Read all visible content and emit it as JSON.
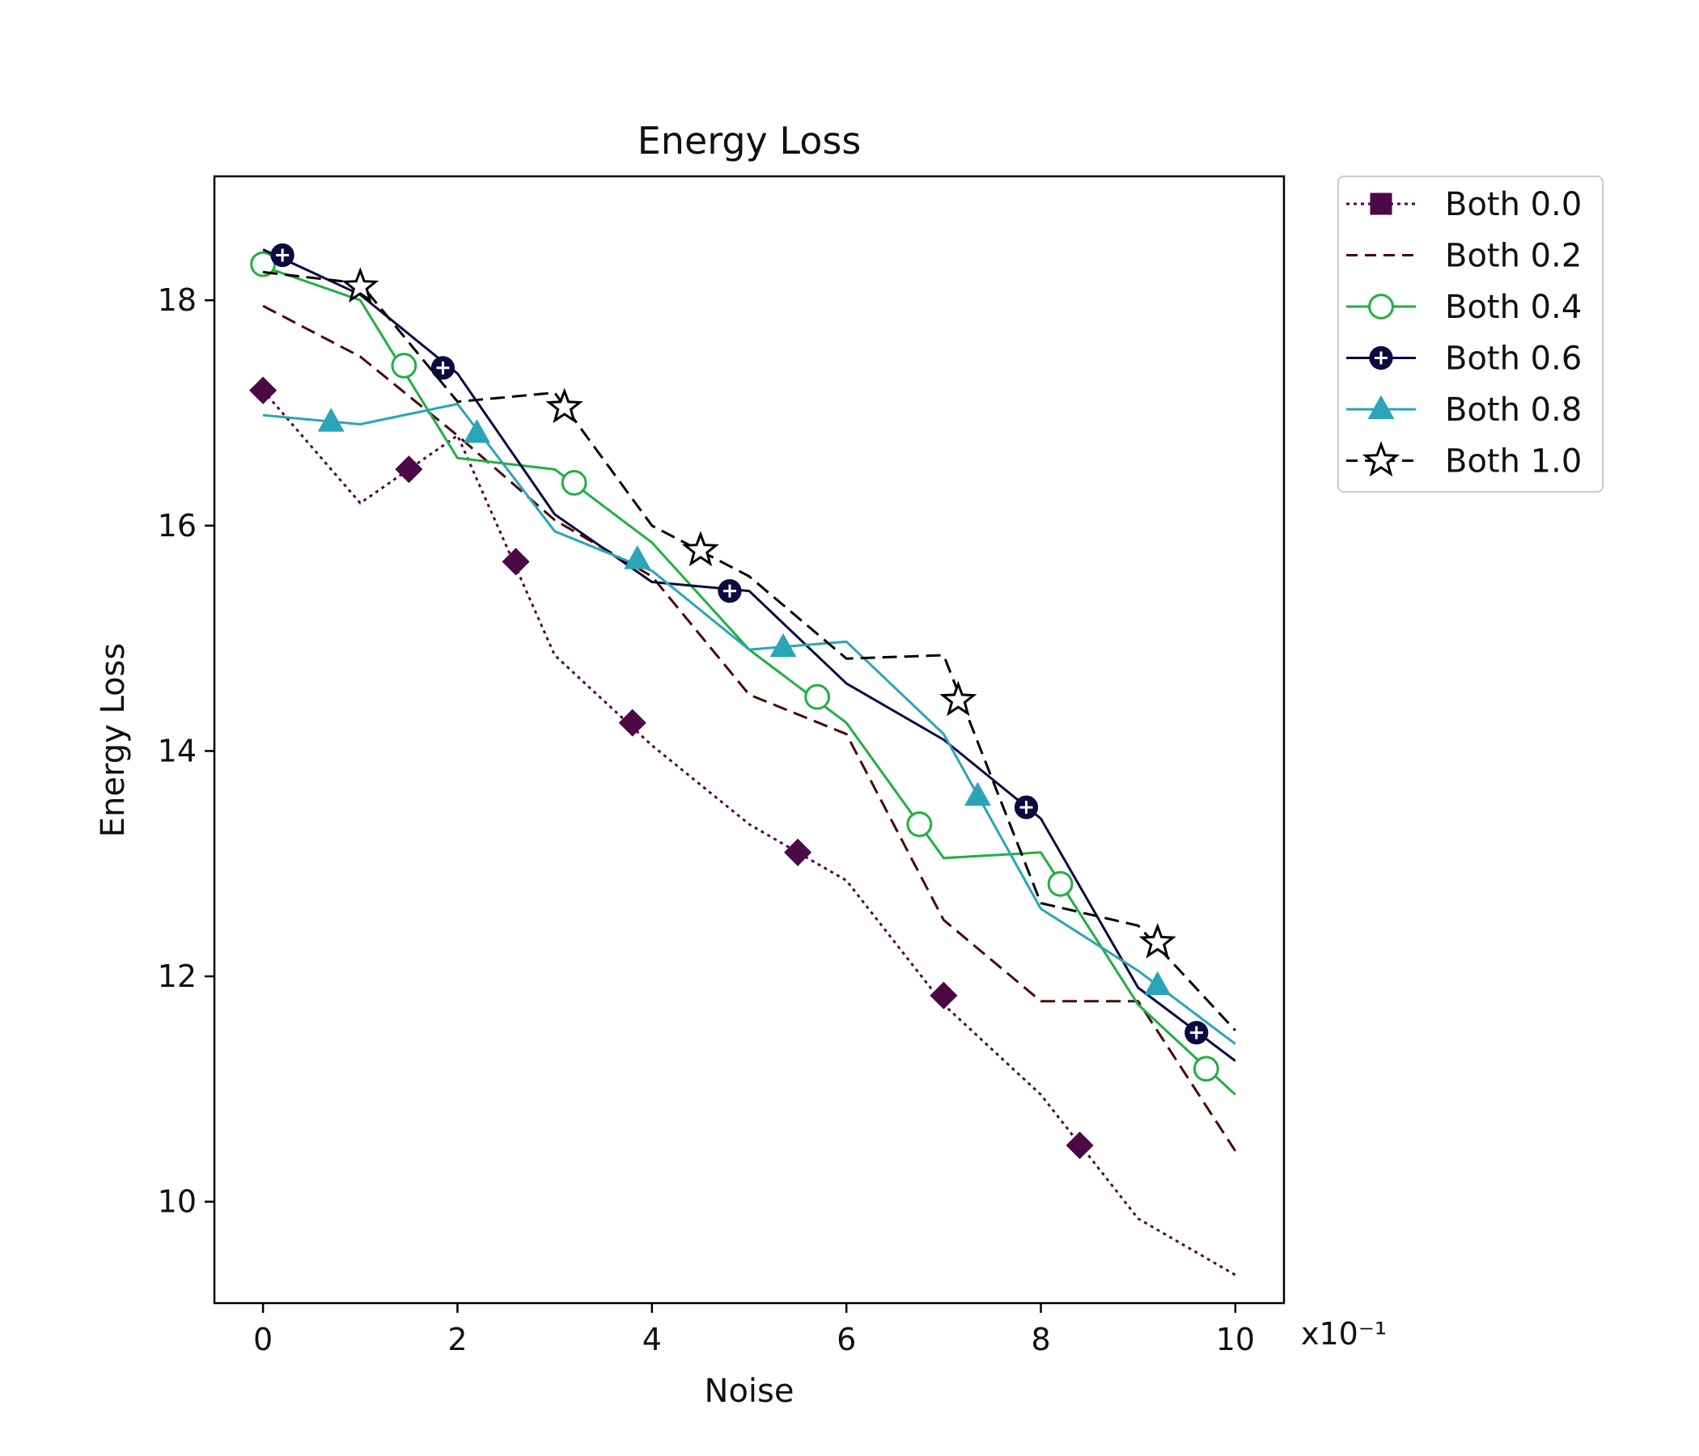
{
  "chart_data": {
    "type": "line",
    "title": "Energy Loss",
    "xlabel": "Noise",
    "ylabel": "Energy Loss",
    "x_exponent_label": "x10⁻¹",
    "xlim": [
      -0.5,
      10.5
    ],
    "ylim": [
      9.1,
      19.1
    ],
    "x_ticks": [
      0,
      2,
      4,
      6,
      8,
      10
    ],
    "y_ticks": [
      10,
      12,
      14,
      16,
      18
    ],
    "legend_position": "outside-top-right",
    "grid": false,
    "series": [
      {
        "name": "Both 0.0",
        "color": "#4b0a45",
        "dash": "dotted",
        "marker": "diamond",
        "marker_fill": "filled",
        "x": [
          0,
          1,
          2,
          3,
          4,
          5,
          6,
          7,
          8,
          9,
          10
        ],
        "y": [
          17.2,
          16.2,
          16.8,
          14.85,
          14.05,
          13.35,
          12.85,
          11.75,
          10.95,
          9.85,
          9.35
        ],
        "marker_x": [
          0,
          1.5,
          2.6,
          3.8,
          5.5,
          7.0,
          8.4
        ],
        "marker_y": [
          17.2,
          16.5,
          15.68,
          14.25,
          13.1,
          11.83,
          10.5
        ]
      },
      {
        "name": "Both 0.2",
        "color": "#4a0808",
        "dash": "dashed",
        "marker": "none",
        "marker_fill": "none",
        "x": [
          0,
          1,
          2,
          3,
          4,
          5,
          6,
          7,
          8,
          9,
          10
        ],
        "y": [
          17.95,
          17.5,
          16.8,
          16.05,
          15.55,
          14.5,
          14.15,
          12.5,
          11.78,
          11.78,
          10.45
        ],
        "marker_x": [],
        "marker_y": []
      },
      {
        "name": "Both 0.4",
        "color": "#20b040",
        "dash": "solid",
        "marker": "circle",
        "marker_fill": "open",
        "x": [
          0,
          1,
          2,
          3,
          4,
          5,
          6,
          7,
          8,
          9,
          10
        ],
        "y": [
          18.3,
          18.0,
          16.6,
          16.5,
          15.85,
          14.9,
          14.25,
          13.05,
          13.1,
          11.75,
          10.95
        ],
        "marker_x": [
          0,
          1.45,
          3.2,
          5.7,
          6.75,
          8.2,
          9.7
        ],
        "marker_y": [
          18.32,
          17.42,
          16.38,
          14.48,
          13.35,
          12.82,
          11.18
        ]
      },
      {
        "name": "Both 0.6",
        "color": "#0c0a3e",
        "dash": "solid",
        "marker": "circle-plus",
        "marker_fill": "filled",
        "x": [
          0,
          1,
          2,
          3,
          4,
          5,
          6,
          7,
          8,
          9,
          10
        ],
        "y": [
          18.45,
          18.05,
          17.35,
          16.1,
          15.5,
          15.42,
          14.6,
          14.1,
          13.4,
          11.9,
          11.25
        ],
        "marker_x": [
          0.2,
          1.85,
          4.8,
          7.85,
          9.6
        ],
        "marker_y": [
          18.4,
          17.4,
          15.42,
          13.5,
          11.5
        ]
      },
      {
        "name": "Both 0.8",
        "color": "#2aa5b8",
        "dash": "solid",
        "marker": "triangle",
        "marker_fill": "filled",
        "x": [
          0,
          1,
          2,
          3,
          4,
          5,
          6,
          7,
          8,
          9,
          10
        ],
        "y": [
          16.98,
          16.9,
          17.08,
          15.95,
          15.6,
          14.9,
          14.97,
          14.15,
          12.6,
          12.05,
          11.4
        ],
        "marker_x": [
          0.7,
          2.2,
          3.85,
          5.35,
          7.35,
          9.2
        ],
        "marker_y": [
          16.92,
          16.82,
          15.7,
          14.92,
          13.6,
          11.92
        ]
      },
      {
        "name": "Both 1.0",
        "color": "#000000",
        "dash": "dashed",
        "marker": "star",
        "marker_fill": "open",
        "x": [
          0,
          1,
          2,
          3,
          4,
          5,
          6,
          7,
          8,
          9,
          10
        ],
        "y": [
          18.25,
          18.15,
          17.1,
          17.18,
          16.0,
          15.55,
          14.82,
          14.85,
          12.65,
          12.45,
          11.52
        ],
        "marker_x": [
          1.0,
          3.1,
          4.5,
          7.15,
          9.2
        ],
        "marker_y": [
          18.12,
          17.05,
          15.78,
          14.45,
          12.3
        ]
      }
    ]
  }
}
